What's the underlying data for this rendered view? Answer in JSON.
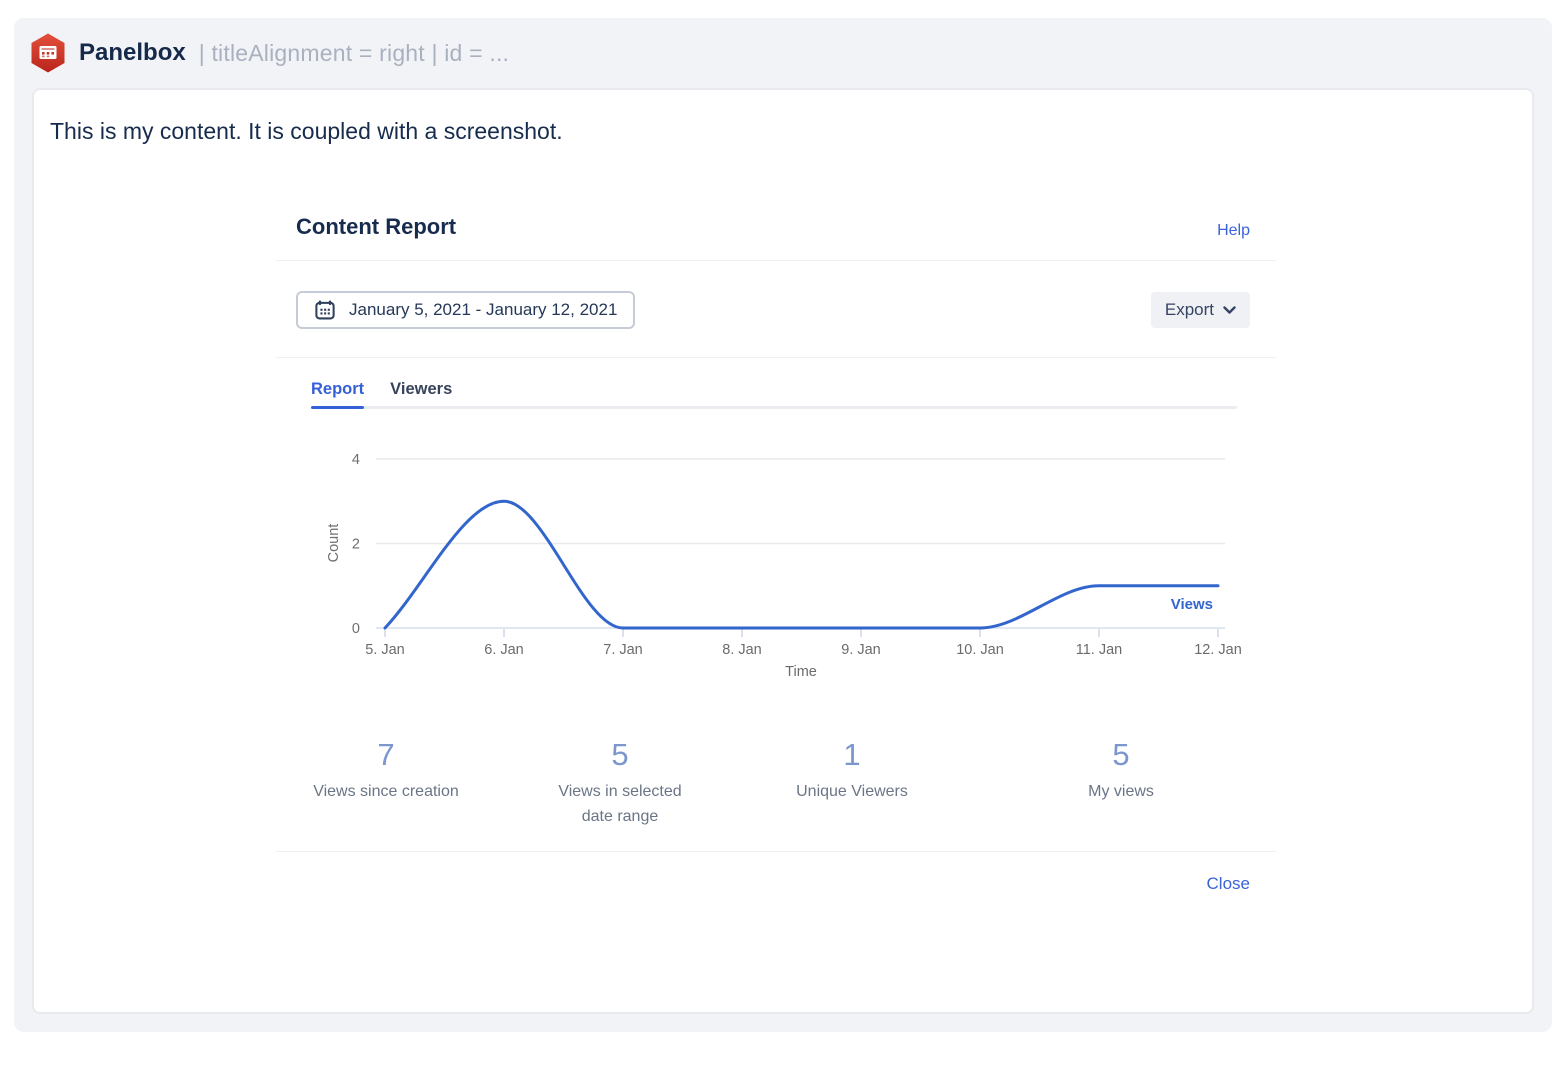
{
  "panelbox": {
    "title": "Panelbox",
    "params": "| titleAlignment = right | id = ...",
    "icon": "red-hexagon-panel-macro",
    "content_text": "This is my content. It is coupled with a screenshot."
  },
  "report": {
    "title": "Content Report",
    "help_label": "Help",
    "date_range": "January 5, 2021 - January 12, 2021",
    "date_icon": "calendar",
    "export_label": "Export",
    "export_icon": "chevron-down",
    "tabs": [
      {
        "label": "Report",
        "active": true
      },
      {
        "label": "Viewers",
        "active": false
      }
    ],
    "stats": [
      {
        "value": "7",
        "label": "Views since creation"
      },
      {
        "value": "5",
        "label": "Views in selected date range"
      },
      {
        "value": "1",
        "label": "Unique Viewers"
      },
      {
        "value": "5",
        "label": "My views"
      }
    ],
    "close_label": "Close"
  },
  "chart_data": {
    "type": "line",
    "title": "",
    "categories": [
      "5. Jan",
      "6. Jan",
      "7. Jan",
      "8. Jan",
      "9. Jan",
      "10. Jan",
      "11. Jan",
      "12. Jan"
    ],
    "series": [
      {
        "name": "Views",
        "values": [
          0,
          3,
          0,
          0,
          0,
          0,
          1,
          1
        ]
      }
    ],
    "xlabel": "Time",
    "ylabel": "Count",
    "ylim": [
      0,
      4
    ],
    "yticks": [
      0,
      2,
      4
    ],
    "grid": true,
    "smooth": true,
    "legend_position": "inline-right",
    "line_color": "#3366CC"
  },
  "colors": {
    "accent_blue": "#3B63D8",
    "chart_blue": "#3366CC",
    "stat_blue": "#7C96CE",
    "panel_bg": "#F2F3F6"
  }
}
